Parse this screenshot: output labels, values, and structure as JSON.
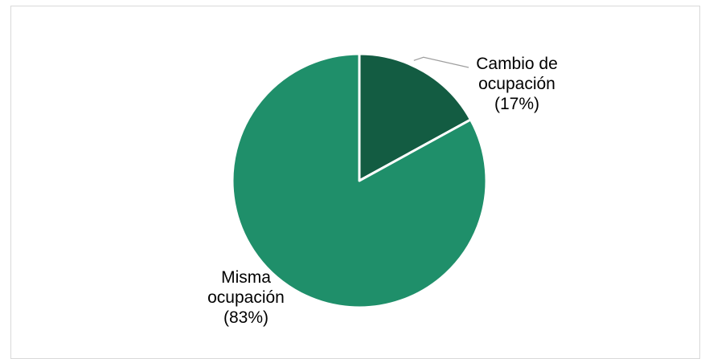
{
  "chart_data": {
    "type": "pie",
    "title": "",
    "slices": [
      {
        "name": "Cambio de ocupación",
        "percent": 17,
        "label_lines": [
          "Cambio de",
          "ocupación",
          "(17%)"
        ],
        "color": "#135c42"
      },
      {
        "name": "Misma ocupación",
        "percent": 83,
        "label_lines": [
          "Misma",
          "ocupación",
          "(83%)"
        ],
        "color": "#1f8f6a"
      }
    ],
    "start": "12 o'clock",
    "direction": "clockwise",
    "slice_border_color": "#ffffff",
    "leader_line_color": "#9e9e9e",
    "legend": "none"
  }
}
